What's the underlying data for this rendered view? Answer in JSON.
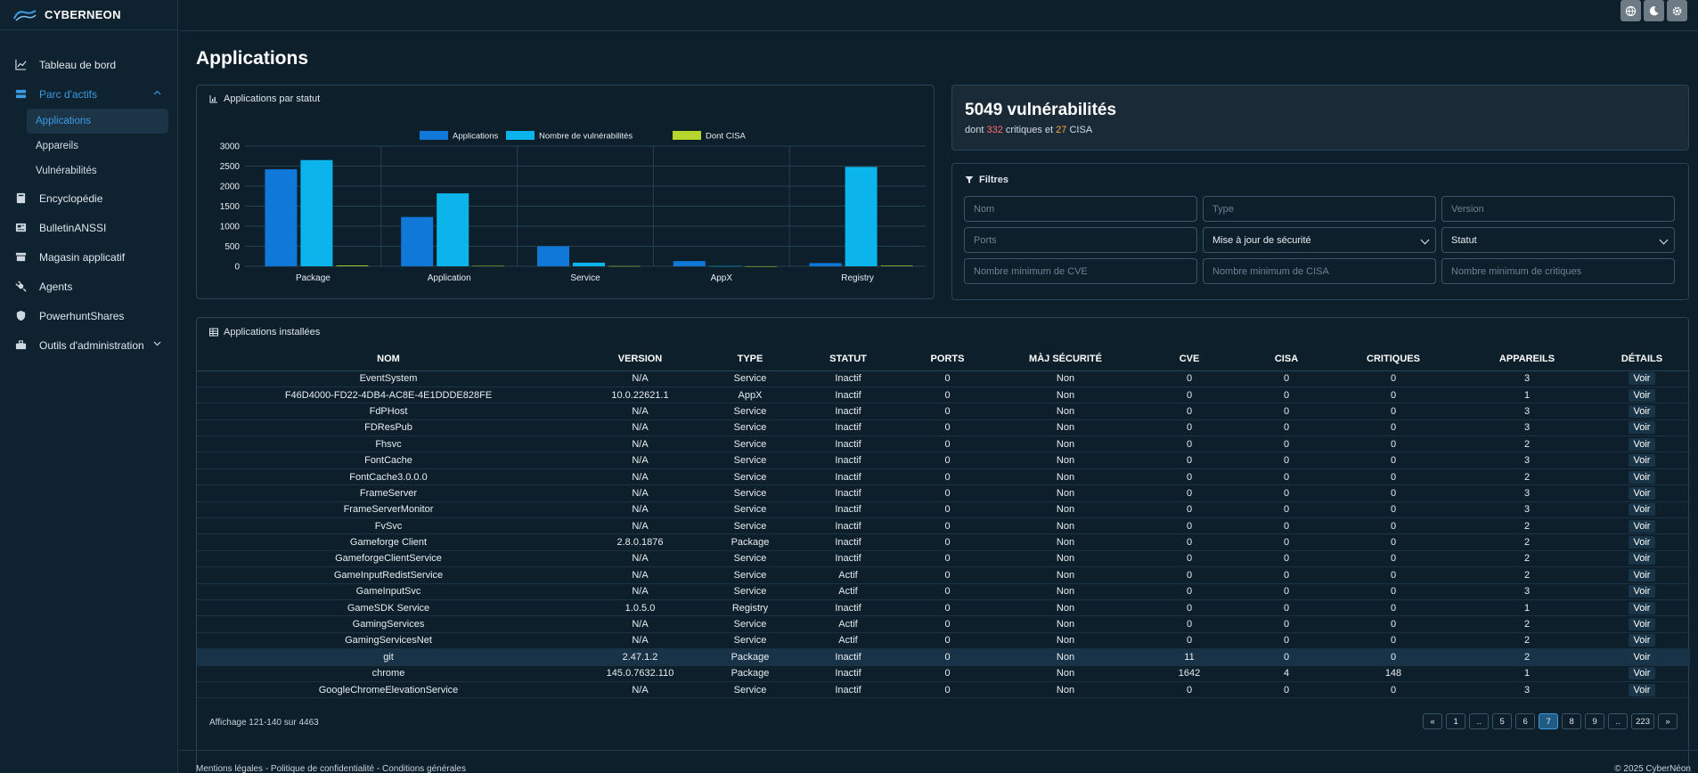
{
  "brand": {
    "name": "CYBERNEON"
  },
  "sidebar": {
    "items": [
      {
        "label": "Tableau de bord",
        "icon": "chart-line-icon"
      },
      {
        "label": "Parc d'actifs",
        "icon": "server-icon"
      },
      {
        "label": "Encyclopédie",
        "icon": "book-icon"
      },
      {
        "label": "BulletinANSSI",
        "icon": "newspaper-icon"
      },
      {
        "label": "Magasin applicatif",
        "icon": "store-icon"
      },
      {
        "label": "Agents",
        "icon": "satellite-icon"
      },
      {
        "label": "PowerhuntShares",
        "icon": "shield-icon"
      },
      {
        "label": "Outils d'administration",
        "icon": "toolbox-icon"
      }
    ],
    "sub_items": [
      {
        "label": "Applications"
      },
      {
        "label": "Appareils"
      },
      {
        "label": "Vulnérabilités"
      }
    ]
  },
  "topbar": {
    "icons": [
      "globe-icon",
      "moon-icon",
      "gear-icon"
    ]
  },
  "page": {
    "title": "Applications"
  },
  "chart_card": {
    "header": "Applications par statut"
  },
  "chart_data": {
    "type": "bar",
    "categories": [
      "Package",
      "Application",
      "Service",
      "AppX",
      "Registry"
    ],
    "series": [
      {
        "name": "Applications",
        "color": "#0f78d8",
        "values": [
          2420,
          1230,
          500,
          130,
          80
        ]
      },
      {
        "name": "Nombre de vulnérabilités",
        "color": "#0bb4ea",
        "values": [
          2650,
          1820,
          90,
          5,
          2480
        ]
      },
      {
        "name": "Dont CISA",
        "color": "#b5d62b",
        "values": [
          20,
          10,
          5,
          0,
          15
        ]
      }
    ],
    "yticks": [
      0,
      500,
      1000,
      1500,
      2000,
      2500,
      3000
    ],
    "ylim": [
      0,
      3000
    ],
    "legend": "top"
  },
  "vuln": {
    "count_title": "5049 vulnérabilités",
    "prefix": "dont",
    "critiques": "332",
    "mid": "critiques et",
    "cisa": "27",
    "suffix": "CISA"
  },
  "filters": {
    "header": "Filtres",
    "nom": "Nom",
    "type": "Type",
    "version": "Version",
    "ports": "Ports",
    "maj": "Mise à jour de sécurité",
    "statut": "Statut",
    "min_cve": "Nombre minimum de CVE",
    "min_cisa": "Nombre minimum de CISA",
    "min_crit": "Nombre minimum de critiques"
  },
  "table": {
    "header": "Applications installées",
    "columns": [
      "NOM",
      "VERSION",
      "TYPE",
      "STATUT",
      "PORTS",
      "MÀJ SÉCURITÉ",
      "CVE",
      "CISA",
      "CRITIQUES",
      "APPAREILS",
      "DÉTAILS"
    ],
    "rows": [
      [
        "EventSystem",
        "N/A",
        "Service",
        "Inactif",
        "0",
        "Non",
        "0",
        "0",
        "0",
        "3",
        "Voir"
      ],
      [
        "F46D4000-FD22-4DB4-AC8E-4E1DDDE828FE",
        "10.0.22621.1",
        "AppX",
        "Inactif",
        "0",
        "Non",
        "0",
        "0",
        "0",
        "1",
        "Voir"
      ],
      [
        "FdPHost",
        "N/A",
        "Service",
        "Inactif",
        "0",
        "Non",
        "0",
        "0",
        "0",
        "3",
        "Voir"
      ],
      [
        "FDResPub",
        "N/A",
        "Service",
        "Inactif",
        "0",
        "Non",
        "0",
        "0",
        "0",
        "3",
        "Voir"
      ],
      [
        "Fhsvc",
        "N/A",
        "Service",
        "Inactif",
        "0",
        "Non",
        "0",
        "0",
        "0",
        "2",
        "Voir"
      ],
      [
        "FontCache",
        "N/A",
        "Service",
        "Inactif",
        "0",
        "Non",
        "0",
        "0",
        "0",
        "3",
        "Voir"
      ],
      [
        "FontCache3.0.0.0",
        "N/A",
        "Service",
        "Inactif",
        "0",
        "Non",
        "0",
        "0",
        "0",
        "2",
        "Voir"
      ],
      [
        "FrameServer",
        "N/A",
        "Service",
        "Inactif",
        "0",
        "Non",
        "0",
        "0",
        "0",
        "3",
        "Voir"
      ],
      [
        "FrameServerMonitor",
        "N/A",
        "Service",
        "Inactif",
        "0",
        "Non",
        "0",
        "0",
        "0",
        "3",
        "Voir"
      ],
      [
        "FvSvc",
        "N/A",
        "Service",
        "Inactif",
        "0",
        "Non",
        "0",
        "0",
        "0",
        "2",
        "Voir"
      ],
      [
        "Gameforge Client",
        "2.8.0.1876",
        "Package",
        "Inactif",
        "0",
        "Non",
        "0",
        "0",
        "0",
        "2",
        "Voir"
      ],
      [
        "GameforgeClientService",
        "N/A",
        "Service",
        "Inactif",
        "0",
        "Non",
        "0",
        "0",
        "0",
        "2",
        "Voir"
      ],
      [
        "GameInputRedistService",
        "N/A",
        "Service",
        "Actif",
        "0",
        "Non",
        "0",
        "0",
        "0",
        "2",
        "Voir"
      ],
      [
        "GameInputSvc",
        "N/A",
        "Service",
        "Actif",
        "0",
        "Non",
        "0",
        "0",
        "0",
        "3",
        "Voir"
      ],
      [
        "GameSDK Service",
        "1.0.5.0",
        "Registry",
        "Inactif",
        "0",
        "Non",
        "0",
        "0",
        "0",
        "1",
        "Voir"
      ],
      [
        "GamingServices",
        "N/A",
        "Service",
        "Actif",
        "0",
        "Non",
        "0",
        "0",
        "0",
        "2",
        "Voir"
      ],
      [
        "GamingServicesNet",
        "N/A",
        "Service",
        "Actif",
        "0",
        "Non",
        "0",
        "0",
        "0",
        "2",
        "Voir"
      ],
      [
        "git",
        "2.47.1.2",
        "Package",
        "Inactif",
        "0",
        "Non",
        "11",
        "0",
        "0",
        "2",
        "Voir"
      ],
      [
        "chrome",
        "145.0.7632.110",
        "Package",
        "Inactif",
        "0",
        "Non",
        "1642",
        "4",
        "148",
        "1",
        "Voir"
      ],
      [
        "GoogleChromeElevationService",
        "N/A",
        "Service",
        "Inactif",
        "0",
        "Non",
        "0",
        "0",
        "0",
        "3",
        "Voir"
      ]
    ],
    "highlight_row": 17,
    "affichage": "Affichage 121-140 sur 4463"
  },
  "pagination": [
    "«",
    "1",
    "..",
    "5",
    "6",
    "7",
    "8",
    "9",
    "..",
    "223",
    "»"
  ],
  "pagination_current": "7",
  "footer": {
    "left": "Mentions légales - Politique de confidentialité - Conditions générales",
    "right": "© 2025 CyberNéon"
  }
}
